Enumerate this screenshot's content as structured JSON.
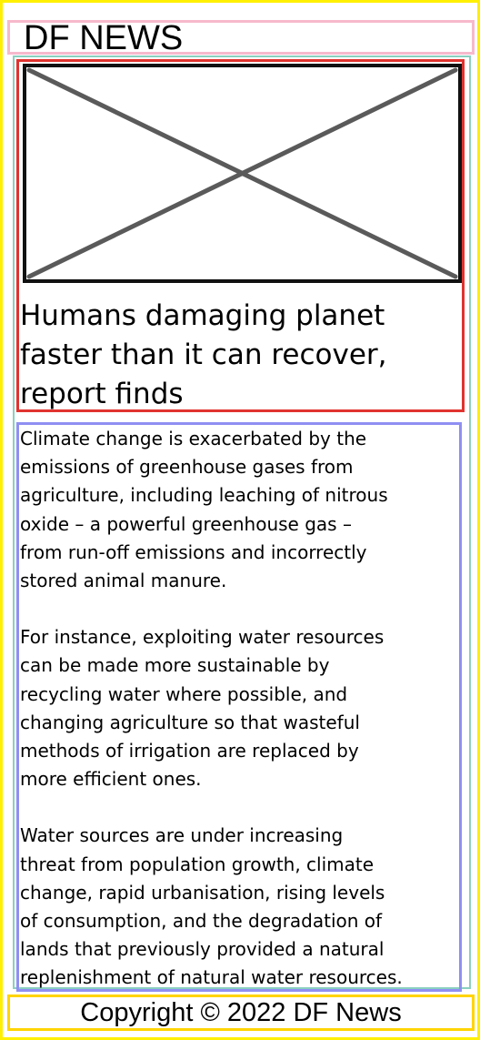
{
  "site": {
    "name": "DF NEWS"
  },
  "hero": {
    "image_icon": "image-placeholder-icon",
    "headline_lines": [
      "Humans damaging planet",
      "faster than it can recover,",
      "report finds"
    ]
  },
  "article": {
    "paragraphs": [
      [
        "Climate change is exacerbated by the",
        "emissions of greenhouse gases from",
        "agriculture, including leaching of nitrous",
        "oxide – a powerful greenhouse gas –",
        "from run-off emissions and incorrectly",
        "stored animal manure."
      ],
      [
        "For instance, exploiting water resources",
        "can be made more sustainable by",
        "recycling water where possible, and",
        "changing agriculture so that wasteful",
        "methods of irrigation are replaced by",
        "more efficient ones."
      ],
      [
        "Water sources are under increasing",
        "threat from population growth, climate",
        "change, rapid urbanisation, rising levels",
        "of consumption, and the degradation of",
        "lands that previously provided a natural",
        "replenishment of natural water resources."
      ]
    ]
  },
  "footer": {
    "copyright": "Copyright © 2022 DF News"
  },
  "colors": {
    "page_border": "#ffef00",
    "header_border": "#f7b9cc",
    "hero_border": "#e0332f",
    "article_border": "#8f8ff2",
    "footer_border": "#ffd400",
    "placeholder_stroke": "#5a5a5a"
  }
}
